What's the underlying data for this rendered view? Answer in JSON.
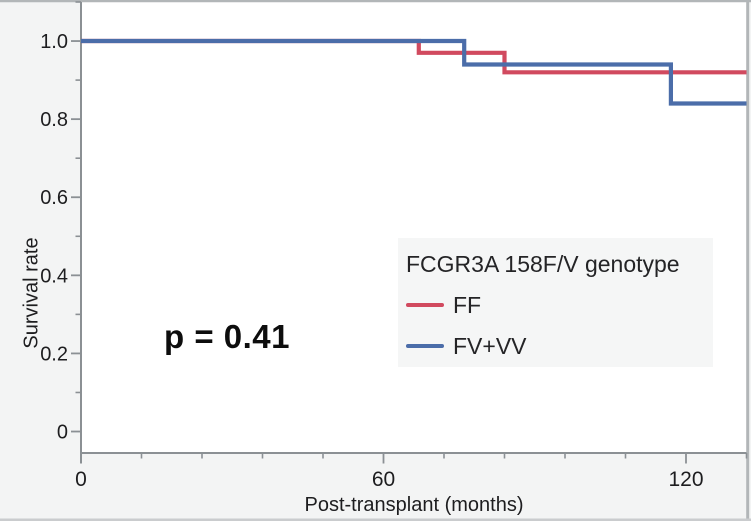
{
  "chart_data": {
    "type": "line",
    "subtype": "kaplan_meier_step",
    "title": "",
    "xlabel": "Post-transplant (months)",
    "ylabel": "Survival rate",
    "p_value": "p = 0.41",
    "grid": false,
    "xlim": [
      0,
      132
    ],
    "ylim": [
      -0.055,
      1.1
    ],
    "x_axis": {
      "major_ticks": [
        {
          "value": 0,
          "label": "0"
        },
        {
          "value": 60,
          "label": "60"
        },
        {
          "value": 120,
          "label": "120"
        }
      ],
      "minor_tick_values": [
        12,
        24,
        36,
        48,
        72,
        84,
        96,
        108,
        132
      ]
    },
    "y_axis": {
      "major_ticks": [
        {
          "value": 1.0,
          "label": "1.0"
        },
        {
          "value": 0.8,
          "label": "0.8"
        },
        {
          "value": 0.6,
          "label": "0.6"
        },
        {
          "value": 0.4,
          "label": "0.4"
        },
        {
          "value": 0.2,
          "label": "0.2"
        },
        {
          "value": 0,
          "label": "0"
        }
      ],
      "minor_tick_values": [
        0.1,
        0.3,
        0.5,
        0.7,
        0.9,
        1.1
      ]
    },
    "legend": {
      "title": "FCGR3A 158F/V genotype",
      "position": "lower right"
    },
    "series": [
      {
        "name": "FF",
        "color": "#d14a5f",
        "points": [
          [
            0,
            1.0
          ],
          [
            67,
            1.0
          ],
          [
            67,
            0.97
          ],
          [
            84,
            0.97
          ],
          [
            84,
            0.92
          ],
          [
            132,
            0.92
          ]
        ]
      },
      {
        "name": "FV+VV",
        "color": "#4b6da9",
        "points": [
          [
            0,
            1.0
          ],
          [
            76,
            1.0
          ],
          [
            76,
            0.94
          ],
          [
            117,
            0.94
          ],
          [
            117,
            0.84
          ],
          [
            132,
            0.84
          ]
        ]
      }
    ]
  },
  "colors": {
    "figure_background": "#f3f4f4",
    "plot_background": "#ffffff",
    "axis": "#8b9094",
    "frame": "#b2b6b8",
    "frame_bottom": "#caccce",
    "tick_text": "#1d1d1f",
    "ff_red": "#d14a5f",
    "fvvv_blue": "#4b6da9",
    "legend_background": "#f5f6f6"
  }
}
